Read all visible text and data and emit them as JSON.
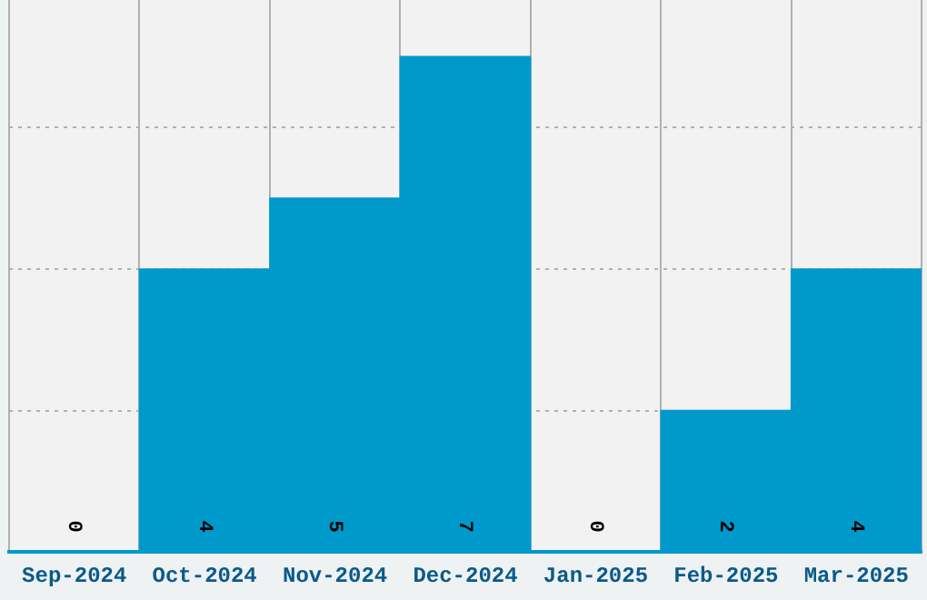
{
  "chart_data": {
    "type": "bar",
    "categories": [
      "Sep-2024",
      "Oct-2024",
      "Nov-2024",
      "Dec-2024",
      "Jan-2025",
      "Feb-2025",
      "Mar-2025"
    ],
    "values": [
      0,
      4,
      5,
      7,
      0,
      2,
      4
    ],
    "color": "#0099cc",
    "ylim": [
      0,
      7.8
    ],
    "yticks": [
      {
        "value": 2,
        "label": null
      },
      {
        "value": 4,
        "label": null
      },
      {
        "value": 6,
        "label": null
      }
    ],
    "grid": true,
    "tick_labels": "x",
    "data_labels": true
  }
}
